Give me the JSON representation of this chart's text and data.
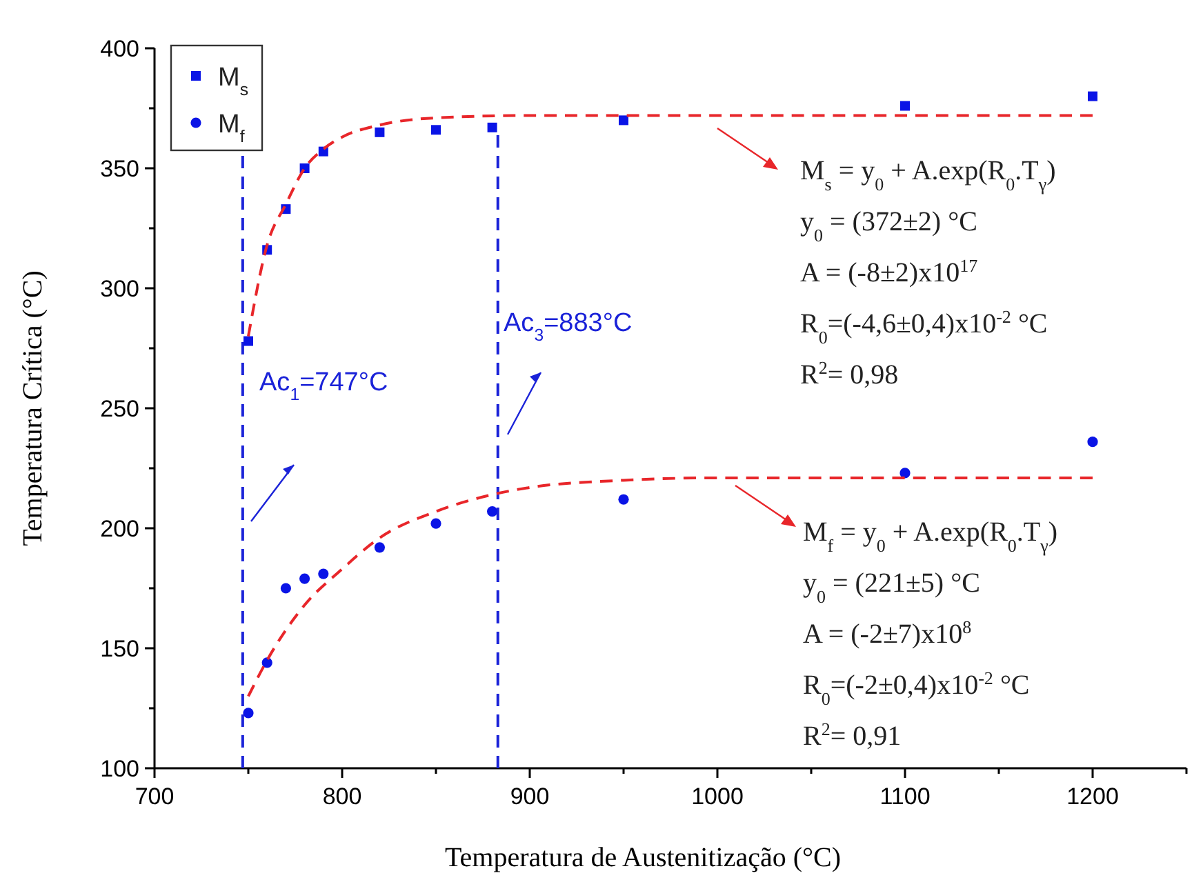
{
  "chart_data": {
    "type": "scatter",
    "xlabel": "Temperatura de Austenitização (°C)",
    "ylabel": "Temperatura Crítica (°C)",
    "xlim": [
      700,
      1250
    ],
    "ylim": [
      100,
      400
    ],
    "xticks": [
      700,
      {
        "value": 750,
        "label": null
      },
      800,
      {
        "value": 850,
        "label": null
      },
      900,
      {
        "value": 950,
        "label": null
      },
      1000,
      {
        "value": 1050,
        "label": null
      },
      1100,
      {
        "value": 1150,
        "label": null
      },
      1200,
      {
        "value": 1250,
        "label": null
      }
    ],
    "yticks": [
      100,
      {
        "value": 125,
        "label": null
      },
      150,
      {
        "value": 175,
        "label": null
      },
      200,
      {
        "value": 225,
        "label": null
      },
      250,
      {
        "value": 275,
        "label": null
      },
      300,
      {
        "value": 325,
        "label": null
      },
      350,
      {
        "value": 375,
        "label": null
      },
      400
    ],
    "grid": false,
    "legend": "top left",
    "series": [
      {
        "name": "M$_{s}$",
        "marker": "square",
        "color": "#0a14e6",
        "x": [
          750,
          760,
          770,
          780,
          790,
          820,
          850,
          880,
          950,
          1100,
          1200
        ],
        "values": [
          278,
          316,
          333,
          350,
          357,
          365,
          366,
          367,
          370,
          376,
          380
        ]
      },
      {
        "name": "M$_{f}$",
        "marker": "circle",
        "color": "#0a14e6",
        "x": [
          750,
          760,
          770,
          780,
          790,
          820,
          850,
          880,
          950,
          1100,
          1200
        ],
        "values": [
          123,
          144,
          175,
          179,
          181,
          192,
          202,
          207,
          212,
          223,
          236
        ]
      },
      {
        "type": "line",
        "line_style": "dashed",
        "color": "#e8262a",
        "x": [
          750,
          760,
          770,
          780,
          790,
          800,
          820,
          850,
          900,
          1000,
          1200
        ],
        "values": [
          280,
          318,
          335,
          350,
          358,
          363,
          368,
          371,
          372,
          372,
          372
        ]
      },
      {
        "type": "line",
        "line_style": "dashed",
        "color": "#e8262a",
        "x": [
          750,
          760,
          780,
          800,
          820,
          850,
          880,
          900,
          950,
          1000,
          1200
        ],
        "values": [
          130,
          145,
          168,
          183,
          196,
          207,
          214,
          217,
          220,
          221,
          221
        ]
      }
    ],
    "ref_lines": [
      {
        "axis": "x",
        "value": 747,
        "label": "Ac$_{1}$=747°C",
        "color": "#1a22d8",
        "line_style": "dashed"
      },
      {
        "axis": "x",
        "value": 883,
        "label": "Ac$_{3}$=883°C",
        "color": "#1a22d8",
        "line_style": "dashed"
      }
    ],
    "annotations": [
      "M$_{s}$ = y$_{0}$ + A.exp(R$_{0}$.T$_{γ}$)",
      "y$_{0}$ = (372±2) °C",
      "A = (-8±2)x10$^{17}$",
      "R$_{0}$=(-4,6±0,4)x10$^{-2}$ °C",
      "R$^{2}$= 0,98",
      "M$_{f}$ = y$_{0}$ + A.exp(R$_{0}$.T$_{γ}$)",
      "y$_{0}$ = (221±5) °C",
      "A = (-2±7)x10$^{8}$",
      "R$_{0}$=(-2±0,4)x10$^{-2}$ °C",
      "R$^{2}$= 0,91"
    ]
  }
}
